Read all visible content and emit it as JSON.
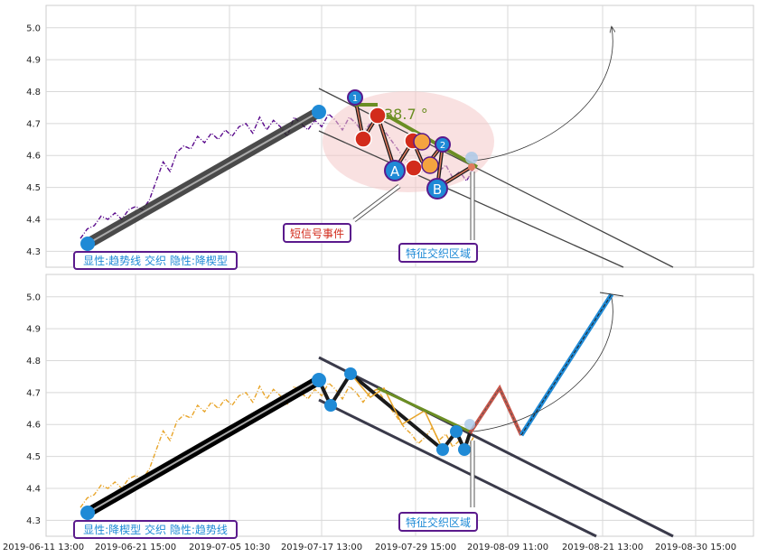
{
  "chart_data": [
    {
      "type": "line",
      "panel": "top",
      "ylim": [
        4.25,
        5.07
      ],
      "yticks": [
        "4.3",
        "4.4",
        "4.5",
        "4.6",
        "4.7",
        "4.8",
        "4.9",
        "5.0"
      ],
      "series": [
        {
          "points": [
            [
              0,
              4.34
            ],
            [
              2,
              4.37
            ],
            [
              4,
              4.38
            ],
            [
              6,
              4.41
            ],
            [
              8,
              4.4
            ],
            [
              10,
              4.42
            ],
            [
              12,
              4.4
            ],
            [
              14,
              4.43
            ],
            [
              16,
              4.44
            ],
            [
              18,
              4.43
            ],
            [
              20,
              4.46
            ],
            [
              22,
              4.52
            ],
            [
              24,
              4.58
            ],
            [
              26,
              4.55
            ],
            [
              28,
              4.61
            ],
            [
              30,
              4.63
            ],
            [
              32,
              4.62
            ],
            [
              34,
              4.66
            ],
            [
              36,
              4.64
            ],
            [
              38,
              4.67
            ],
            [
              40,
              4.65
            ],
            [
              42,
              4.68
            ],
            [
              44,
              4.66
            ],
            [
              46,
              4.69
            ],
            [
              48,
              4.7
            ],
            [
              50,
              4.67
            ],
            [
              52,
              4.72
            ],
            [
              54,
              4.68
            ],
            [
              56,
              4.71
            ],
            [
              58,
              4.69
            ],
            [
              60,
              4.66
            ],
            [
              62,
              4.72
            ],
            [
              64,
              4.7
            ],
            [
              66,
              4.68
            ],
            [
              68,
              4.71
            ],
            [
              70,
              4.69
            ],
            [
              72,
              4.73
            ],
            [
              74,
              4.71
            ],
            [
              76,
              4.68
            ],
            [
              78,
              4.72
            ],
            [
              80,
              4.7
            ],
            [
              82,
              4.67
            ],
            [
              84,
              4.7
            ],
            [
              86,
              4.71
            ],
            [
              88,
              4.68
            ],
            [
              90,
              4.65
            ],
            [
              92,
              4.62
            ],
            [
              94,
              4.59
            ],
            [
              96,
              4.57
            ],
            [
              98,
              4.54
            ],
            [
              100,
              4.56
            ],
            [
              102,
              4.59
            ],
            [
              104,
              4.55
            ],
            [
              106,
              4.57
            ],
            [
              108,
              4.53
            ],
            [
              110,
              4.55
            ],
            [
              112,
              4.52
            ],
            [
              114,
              4.56
            ]
          ],
          "color": "#5a0a8c"
        }
      ],
      "annotations": [
        {
          "text": "显性:趋势线 交织 隐性:降楔型"
        },
        {
          "text": "短信号事件"
        },
        {
          "text": "特征交织区域"
        },
        {
          "text": "38.7 °"
        },
        {
          "text": "1"
        },
        {
          "text": "2"
        },
        {
          "text": "A"
        },
        {
          "text": "B"
        }
      ]
    },
    {
      "type": "line",
      "panel": "bottom",
      "ylim": [
        4.25,
        5.07
      ],
      "yticks": [
        "4.3",
        "4.4",
        "4.5",
        "4.6",
        "4.7",
        "4.8",
        "4.9",
        "5.0"
      ],
      "series": [
        {
          "points": [
            [
              0,
              4.34
            ],
            [
              2,
              4.37
            ],
            [
              4,
              4.38
            ],
            [
              6,
              4.41
            ],
            [
              8,
              4.4
            ],
            [
              10,
              4.42
            ],
            [
              12,
              4.4
            ],
            [
              14,
              4.43
            ],
            [
              16,
              4.44
            ],
            [
              18,
              4.43
            ],
            [
              20,
              4.46
            ],
            [
              22,
              4.52
            ],
            [
              24,
              4.58
            ],
            [
              26,
              4.55
            ],
            [
              28,
              4.61
            ],
            [
              30,
              4.63
            ],
            [
              32,
              4.62
            ],
            [
              34,
              4.66
            ],
            [
              36,
              4.64
            ],
            [
              38,
              4.67
            ],
            [
              40,
              4.65
            ],
            [
              42,
              4.68
            ],
            [
              44,
              4.66
            ],
            [
              46,
              4.69
            ],
            [
              48,
              4.7
            ],
            [
              50,
              4.67
            ],
            [
              52,
              4.72
            ],
            [
              54,
              4.68
            ],
            [
              56,
              4.71
            ],
            [
              58,
              4.69
            ],
            [
              60,
              4.66
            ],
            [
              62,
              4.72
            ],
            [
              64,
              4.7
            ],
            [
              66,
              4.68
            ],
            [
              68,
              4.71
            ],
            [
              70,
              4.69
            ],
            [
              72,
              4.73
            ],
            [
              74,
              4.71
            ],
            [
              76,
              4.68
            ],
            [
              78,
              4.72
            ],
            [
              80,
              4.7
            ],
            [
              82,
              4.67
            ],
            [
              84,
              4.7
            ],
            [
              86,
              4.71
            ],
            [
              88,
              4.68
            ],
            [
              90,
              4.65
            ],
            [
              92,
              4.62
            ],
            [
              94,
              4.59
            ],
            [
              96,
              4.57
            ],
            [
              98,
              4.54
            ],
            [
              100,
              4.56
            ],
            [
              102,
              4.59
            ],
            [
              104,
              4.55
            ],
            [
              106,
              4.57
            ],
            [
              108,
              4.53
            ],
            [
              110,
              4.55
            ],
            [
              112,
              4.52
            ],
            [
              114,
              4.56
            ]
          ],
          "color": "#e8a52a"
        }
      ],
      "annotations": [
        {
          "text": "显性:降楔型 交织 隐性:趋势线"
        },
        {
          "text": "特征交织区域"
        }
      ]
    }
  ],
  "x_axis": {
    "tick_labels": [
      "2019-06-11 13:00",
      "2019-06-21 15:00",
      "2019-07-05 10:30",
      "2019-07-17 13:00",
      "2019-07-29 15:00",
      "2019-08-09 11:00",
      "2019-08-21 13:00",
      "2019-08-30 15:00"
    ]
  },
  "colors": {
    "top_series": "#5a0a8c",
    "bottom_series": "#e8a52a",
    "marker": "#1f8ad6",
    "signal": "#d22b1b",
    "box_border": "#5a1a8c",
    "box_text": "#1f8ad6",
    "trend_green": "#6b8e23"
  }
}
